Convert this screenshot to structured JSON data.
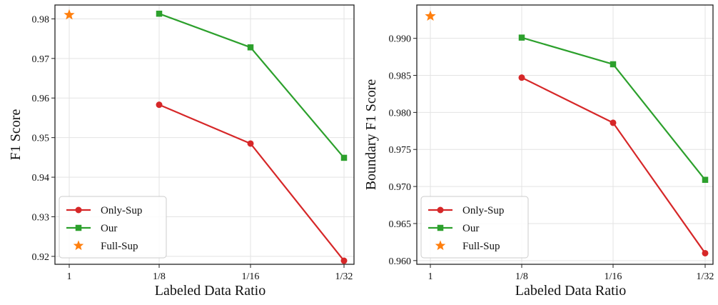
{
  "chart_data": [
    {
      "type": "line",
      "title": "",
      "xlabel": "Labeled Data Ratio",
      "ylabel": "F1 Score",
      "categories": [
        "1",
        "1/8",
        "1/16",
        "1/32"
      ],
      "ylim": [
        0.918,
        0.9835
      ],
      "yticks": [
        0.92,
        0.93,
        0.94,
        0.95,
        0.96,
        0.97,
        0.98
      ],
      "ytick_labels": [
        "0.92",
        "0.93",
        "0.94",
        "0.95",
        "0.96",
        "0.97",
        "0.98"
      ],
      "grid": true,
      "legend_position": "bottom-left",
      "series": [
        {
          "name": "Only-Sup",
          "marker": "circle",
          "color": "#d62728",
          "values": [
            null,
            0.9583,
            0.9485,
            0.9189
          ]
        },
        {
          "name": "Our",
          "marker": "square",
          "color": "#2ca02c",
          "values": [
            null,
            0.9813,
            0.9728,
            0.9449
          ]
        },
        {
          "name": "Full-Sup",
          "marker": "star",
          "color": "#ff7f0e",
          "values": [
            0.981,
            null,
            null,
            null
          ]
        }
      ]
    },
    {
      "type": "line",
      "title": "",
      "xlabel": "Labeled Data Ratio",
      "ylabel": "Boundary F1 Score",
      "categories": [
        "1",
        "1/8",
        "1/16",
        "1/32"
      ],
      "ylim": [
        0.9595,
        0.9945
      ],
      "yticks": [
        0.96,
        0.965,
        0.97,
        0.975,
        0.98,
        0.985,
        0.99
      ],
      "ytick_labels": [
        "0.960",
        "0.965",
        "0.970",
        "0.975",
        "0.980",
        "0.985",
        "0.990"
      ],
      "grid": true,
      "legend_position": "bottom-left",
      "series": [
        {
          "name": "Only-Sup",
          "marker": "circle",
          "color": "#d62728",
          "values": [
            null,
            0.9847,
            0.9786,
            0.961
          ]
        },
        {
          "name": "Our",
          "marker": "square",
          "color": "#2ca02c",
          "values": [
            null,
            0.9901,
            0.9865,
            0.9709
          ]
        },
        {
          "name": "Full-Sup",
          "marker": "star",
          "color": "#ff7f0e",
          "values": [
            0.993,
            null,
            null,
            null
          ]
        }
      ]
    }
  ]
}
